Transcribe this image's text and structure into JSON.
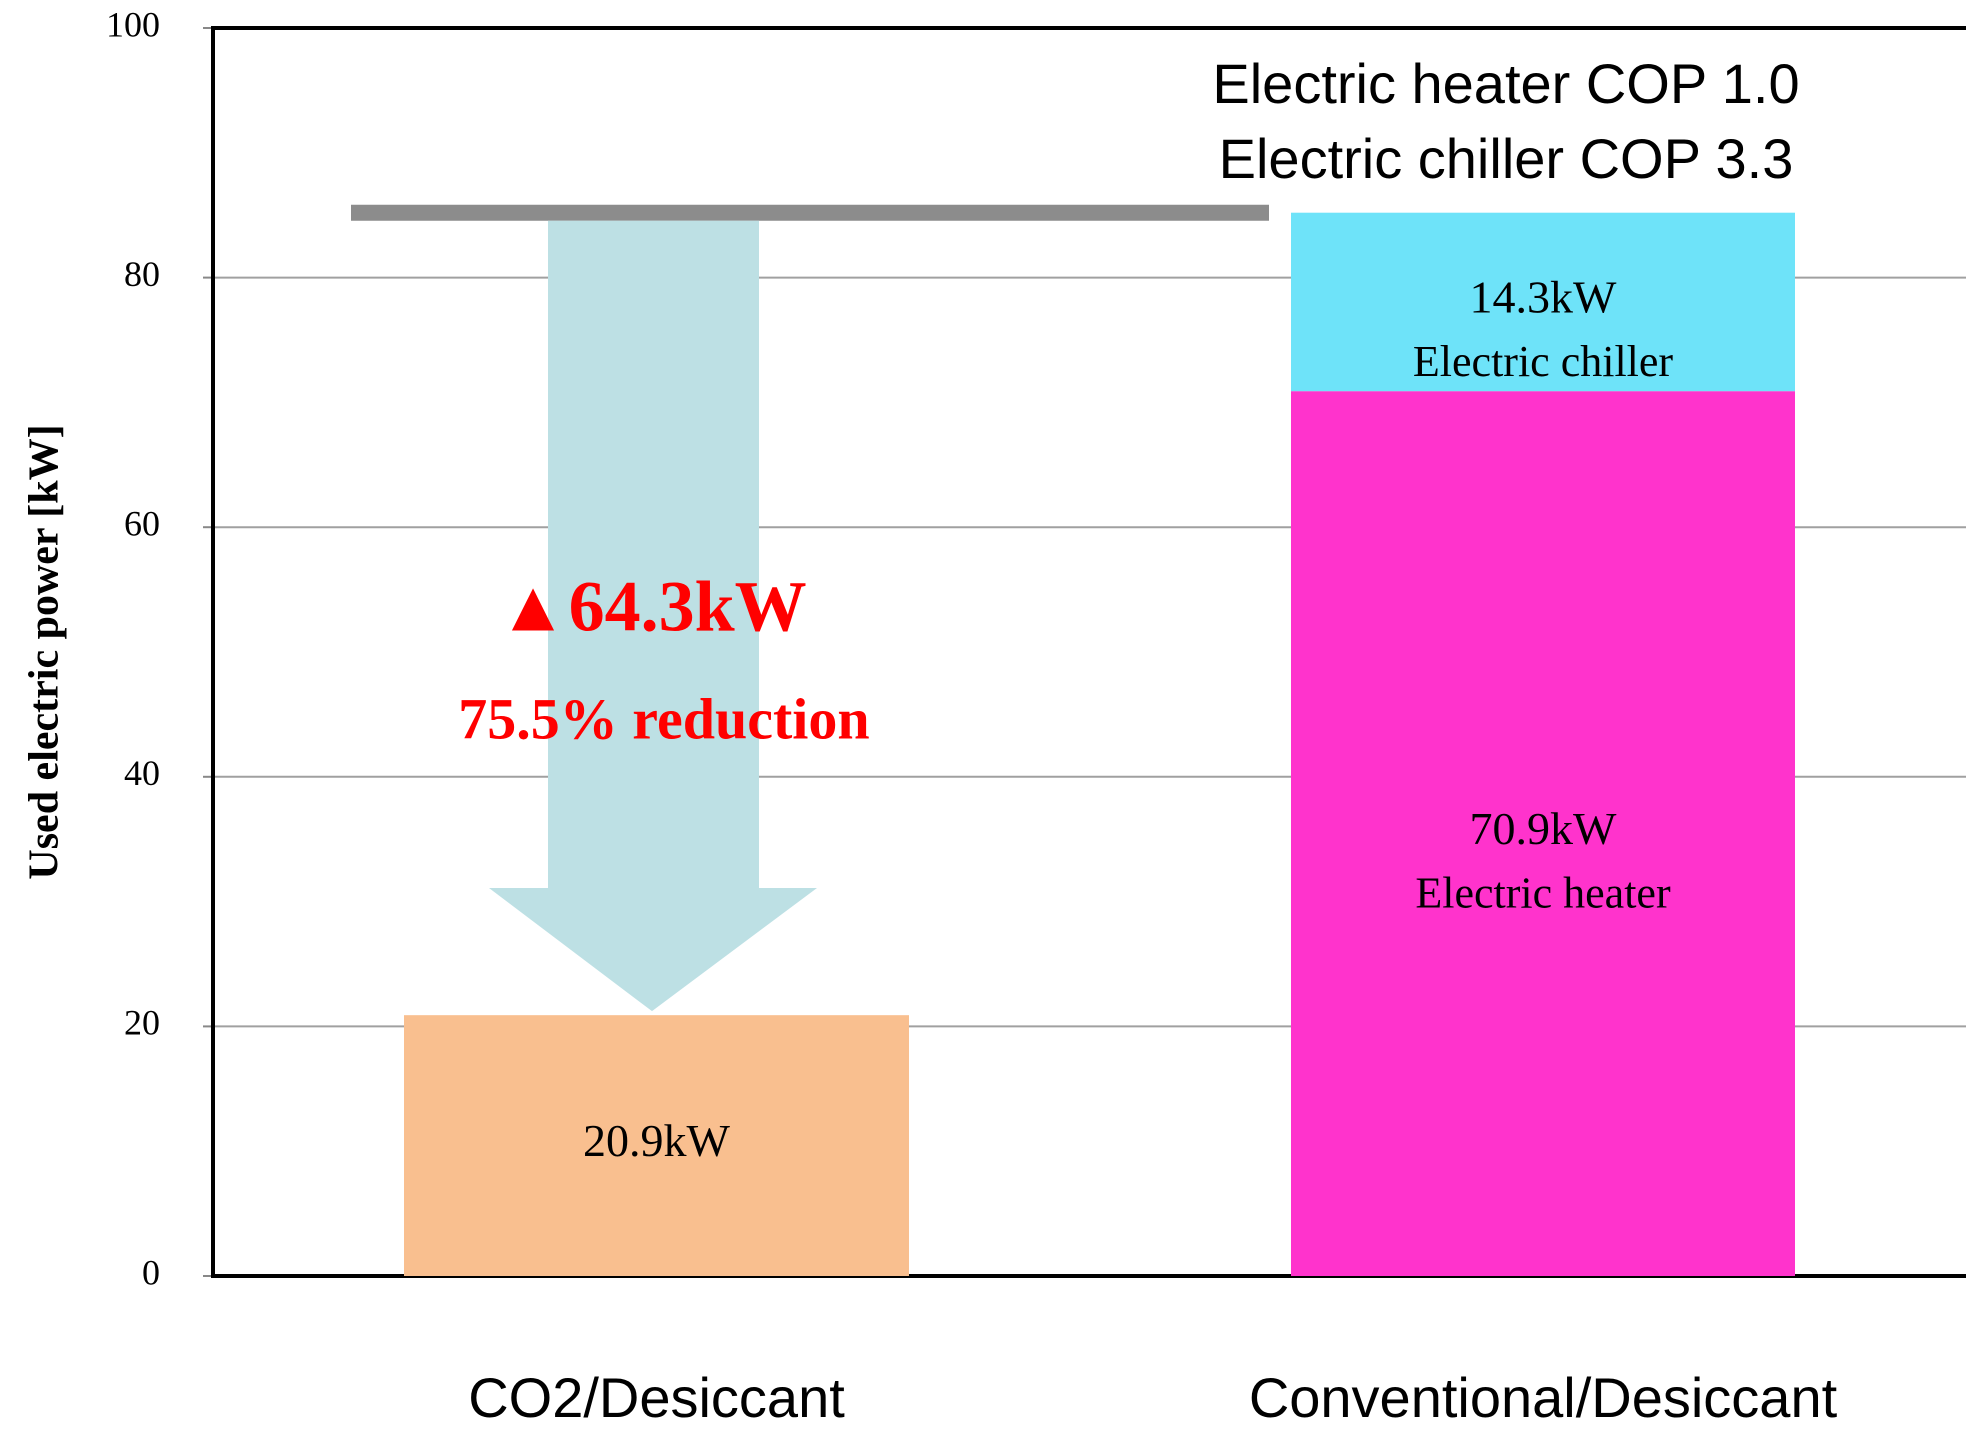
{
  "chart_data": {
    "type": "stacked_bar",
    "y_label": "Used electric power [kW]",
    "categories": [
      "CO2/Desiccant",
      "Conventional/Desiccant"
    ],
    "series": [
      {
        "values": [
          20.9,
          70.9
        ],
        "value_labels": [
          "20.9kW",
          "70.9kW"
        ],
        "segment_labels": [
          null,
          "Electric heater"
        ],
        "colors": [
          "#f9bf8f",
          "#ff33cc"
        ]
      },
      {
        "values": [
          null,
          14.3
        ],
        "value_labels": [
          null,
          "14.3kW"
        ],
        "segment_labels": [
          null,
          "Electric chiller"
        ],
        "colors": [
          null,
          "#6ee3f9"
        ]
      }
    ],
    "ylim": [
      0,
      100
    ],
    "yticks": [
      0,
      20,
      40,
      60,
      80,
      100
    ],
    "grid": true,
    "annotations": [
      "Electric heater COP 1.0",
      "Electric chiller COP 3.3",
      "▲64.3kW",
      "75.5% reduction"
    ]
  }
}
